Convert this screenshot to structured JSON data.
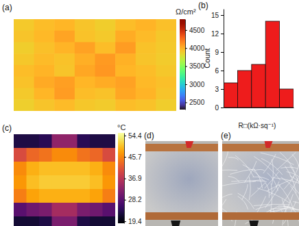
{
  "chart_data": [
    {
      "type": "heatmap",
      "title": "(a)",
      "cells": [
        [
          3900,
          3950,
          3980,
          3920,
          3880,
          3950,
          3990,
          3940
        ],
        [
          3920,
          3970,
          4050,
          3930,
          3900,
          4020,
          3960,
          3910
        ],
        [
          3880,
          3940,
          3990,
          4060,
          3950,
          4080,
          3930,
          3900
        ],
        [
          3910,
          3960,
          3930,
          4010,
          4090,
          4000,
          3920,
          3890
        ],
        [
          3950,
          3990,
          3920,
          4040,
          4100,
          3980,
          3950,
          3910
        ],
        [
          3930,
          4030,
          4070,
          3980,
          4020,
          4060,
          3970,
          3940
        ],
        [
          3900,
          3980,
          4080,
          3950,
          3930,
          4040,
          3990,
          3920
        ],
        [
          3870,
          3920,
          3960,
          3910,
          3890,
          3950,
          3930,
          3880
        ]
      ],
      "colorbar_label": "Ω/cm²",
      "colorbar_range": [
        2300,
        4800
      ],
      "colorbar_ticks": [
        2500,
        3000,
        3500,
        4000,
        4500
      ]
    },
    {
      "type": "histogram",
      "title": "(b)",
      "bins": [
        3.5,
        3.6,
        3.7,
        3.8,
        3.9,
        4.0
      ],
      "values": [
        4,
        6,
        7,
        14,
        3
      ],
      "color": "#ee1c1c",
      "xlabel": "R□(kΩ·sq⁻¹)",
      "ylabel": "Count",
      "xlim": [
        3.5,
        4.0
      ],
      "ylim": [
        0,
        16
      ],
      "yticks": [
        0,
        3,
        6,
        9,
        12,
        15
      ],
      "tick_labels": "y"
    },
    {
      "type": "heatmap",
      "title": "(c)",
      "cells": [
        [
          23,
          23,
          24,
          33,
          33,
          24,
          23,
          23
        ],
        [
          40,
          43,
          44,
          46,
          46,
          44,
          43,
          40
        ],
        [
          46,
          49,
          50,
          50,
          50,
          50,
          49,
          46
        ],
        [
          47,
          50,
          51,
          51,
          51,
          51,
          50,
          47
        ],
        [
          45,
          48,
          49,
          49,
          49,
          49,
          48,
          45
        ],
        [
          28,
          30,
          31,
          35,
          35,
          31,
          30,
          28
        ],
        [
          22,
          22,
          23,
          31,
          31,
          23,
          22,
          22
        ]
      ],
      "colorbar_label": "°C",
      "colorbar_range": [
        18.6,
        55.5
      ],
      "colorbar_ticks": [
        19.4,
        28.2,
        36.9,
        45.7,
        54.4
      ]
    }
  ],
  "photos": [
    {
      "label": "(d)"
    },
    {
      "label": "(e)"
    }
  ]
}
